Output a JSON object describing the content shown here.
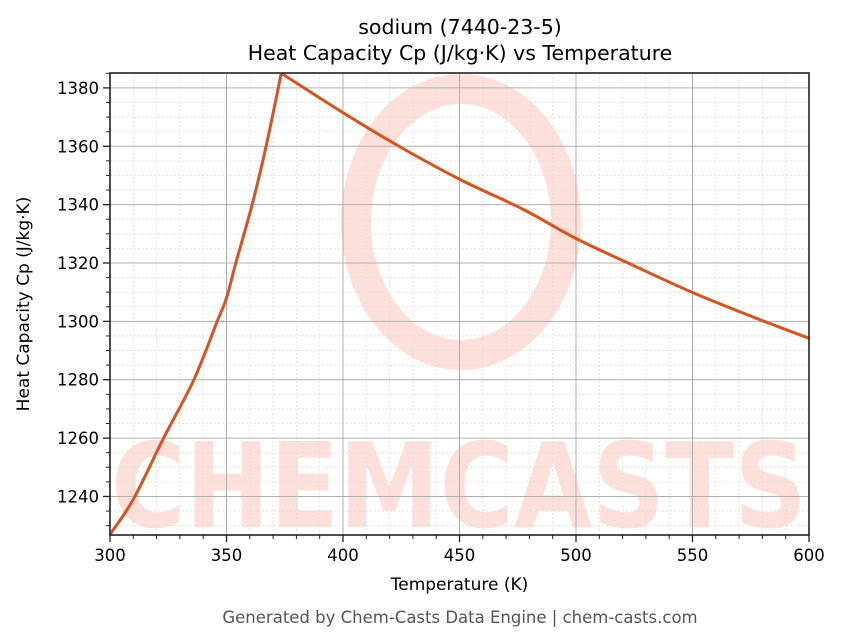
{
  "chart_data": {
    "type": "line",
    "title": "sodium (7440-23-5)",
    "subtitle": "Heat Capacity Cp (J/kg·K) vs Temperature",
    "xlabel": "Temperature (K)",
    "ylabel": "Heat Capacity Cp (J/kg·K)",
    "xlim": [
      300,
      600
    ],
    "ylim": [
      1226.8,
      1385.1
    ],
    "xticks": [
      300,
      350,
      400,
      450,
      500,
      550,
      600
    ],
    "yticks": [
      1240,
      1260,
      1280,
      1300,
      1320,
      1340,
      1360,
      1380
    ],
    "x_minor_step": 10,
    "y_minor_step": 5,
    "grid": true,
    "legend": null,
    "series": [
      {
        "name": "Heat Capacity Cp",
        "color": "#d9531e",
        "x": [
          300,
          310,
          323,
          336,
          346,
          350,
          354,
          361,
          367,
          373.5,
          400,
          424,
          450,
          477,
          500,
          525,
          550,
          575,
          600
        ],
        "y": [
          1227,
          1239,
          1260,
          1280,
          1300,
          1308,
          1320,
          1340,
          1360,
          1385,
          1371.5,
          1360,
          1348.7,
          1338.5,
          1328.4,
          1319,
          1309.9,
          1301.8,
          1294.2
        ]
      }
    ],
    "watermark": "CHEMCASTS",
    "footer": "Generated by Chem-Casts Data Engine | chem-casts.com"
  },
  "title_line1": "sodium (7440-23-5)",
  "title_line2": "Heat Capacity Cp (J/kg·K) vs Temperature",
  "xlabel": "Temperature (K)",
  "ylabel": "Heat Capacity Cp (J/kg·K)",
  "footer": "Generated by Chem-Casts Data Engine | chem-casts.com",
  "colors": {
    "line": "#d9531e",
    "watermark": "#fde0da",
    "grid_major": "#b0b0b0",
    "grid_minor": "#dddddd",
    "axis": "#222222"
  }
}
